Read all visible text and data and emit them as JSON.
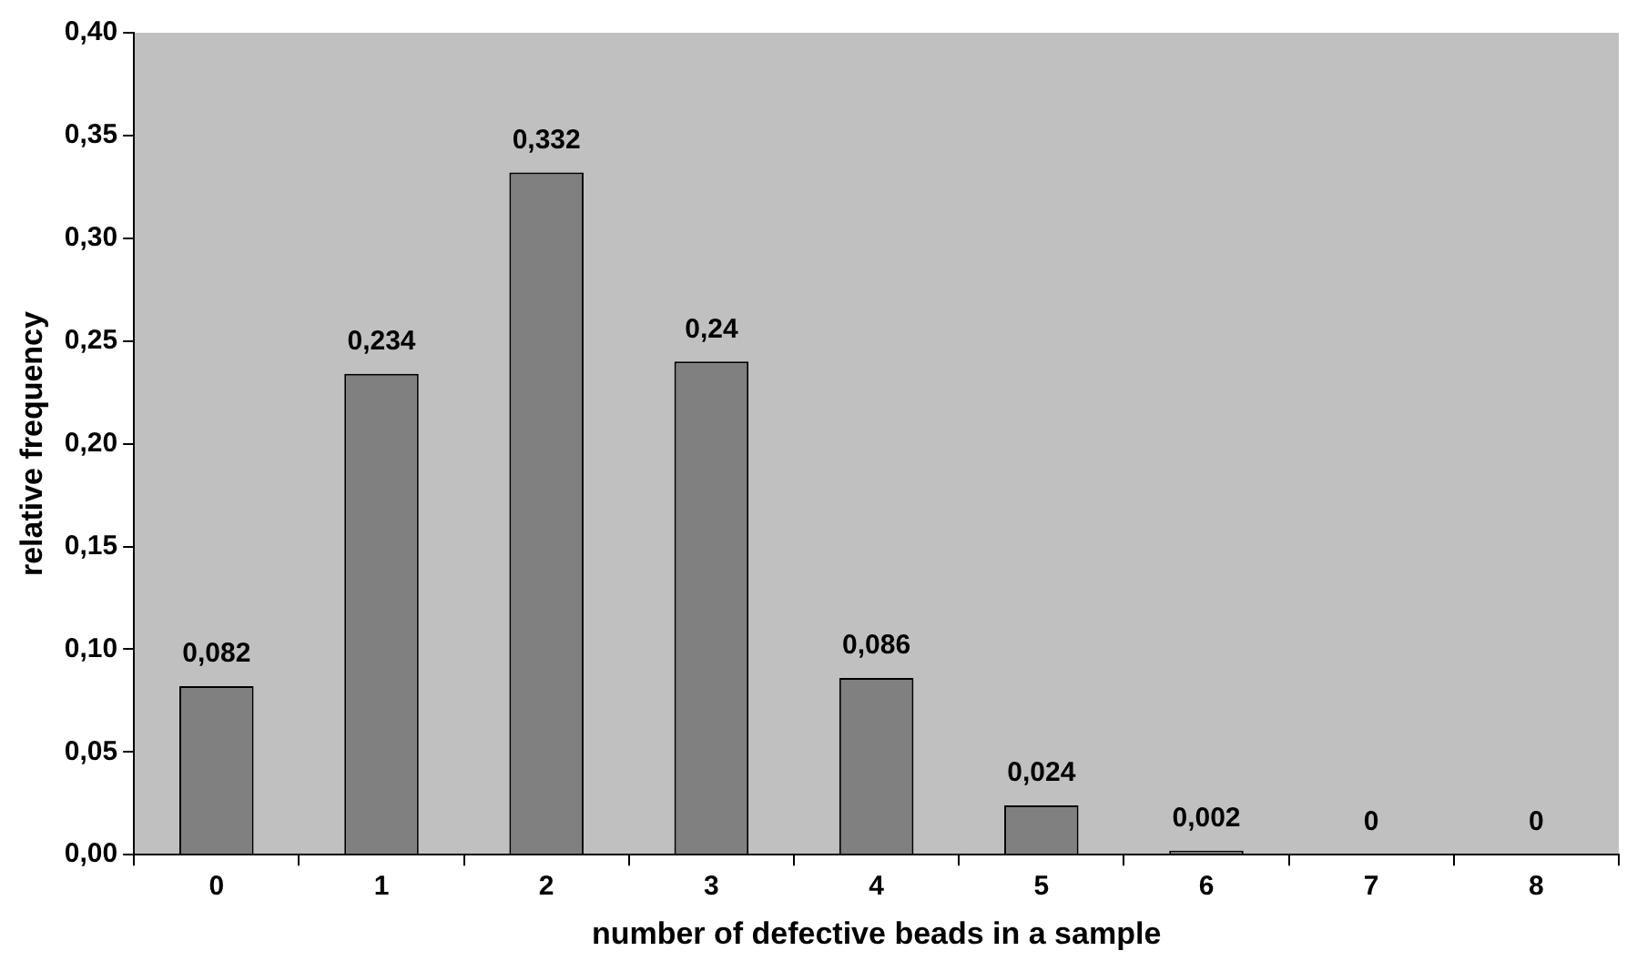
{
  "chart_data": {
    "type": "bar",
    "xlabel": "number of defective beads in a sample",
    "ylabel": "relative frequency",
    "categories": [
      "0",
      "1",
      "2",
      "3",
      "4",
      "5",
      "6",
      "7",
      "8"
    ],
    "values": [
      0.082,
      0.234,
      0.332,
      0.24,
      0.086,
      0.024,
      0.002,
      0,
      0
    ],
    "value_labels": [
      "0,082",
      "0,234",
      "0,332",
      "0,24",
      "0,086",
      "0,024",
      "0,002",
      "0",
      "0"
    ],
    "color": "#808080",
    "ylim": [
      0,
      0.4
    ],
    "yticks": [
      {
        "value": 0,
        "label": "0,00"
      },
      {
        "value": 0.05,
        "label": "0,05"
      },
      {
        "value": 0.1,
        "label": "0,10"
      },
      {
        "value": 0.15,
        "label": "0,15"
      },
      {
        "value": 0.2,
        "label": "0,20"
      },
      {
        "value": 0.25,
        "label": "0,25"
      },
      {
        "value": 0.3,
        "label": "0,30"
      },
      {
        "value": 0.35,
        "label": "0,35"
      },
      {
        "value": 0.4,
        "label": "0,40"
      }
    ],
    "grid": false,
    "legend": false
  }
}
